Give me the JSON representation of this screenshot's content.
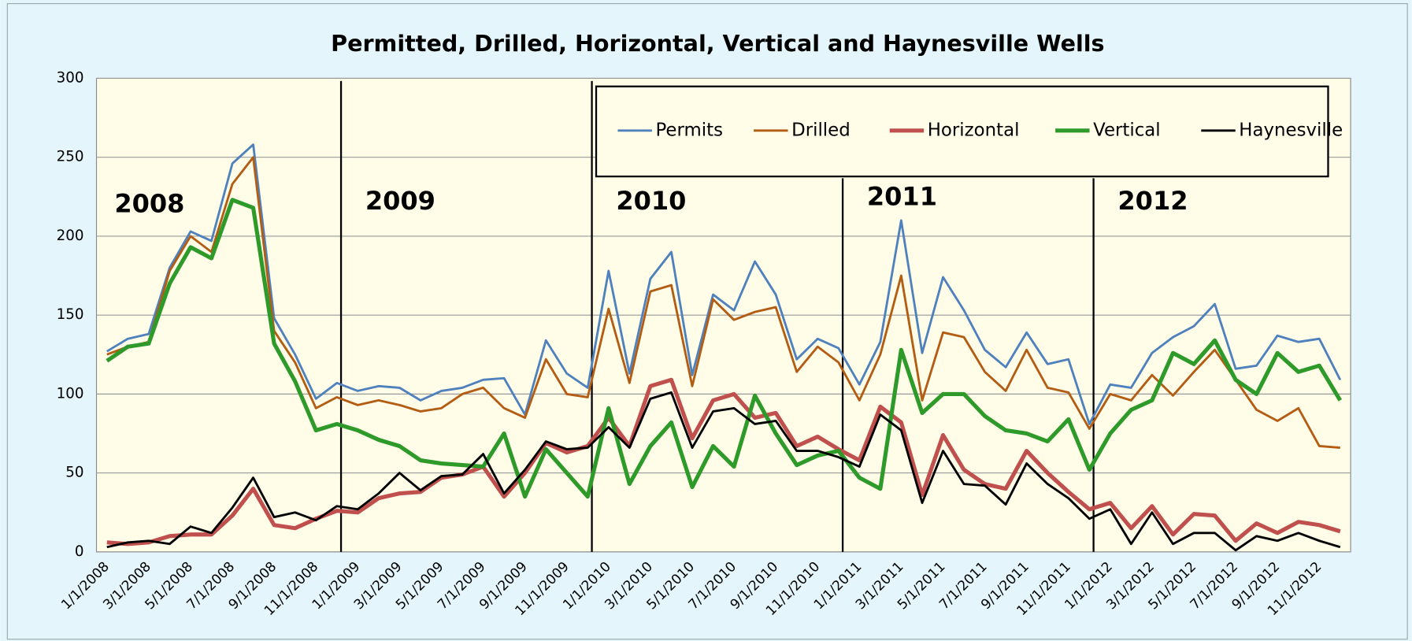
{
  "chart_data": {
    "type": "line",
    "title": "Permitted, Drilled, Horizontal, Vertical and Haynesville Wells",
    "categories": [
      "1/1/2008",
      null,
      "3/1/2008",
      null,
      "5/1/2008",
      null,
      "7/1/2008",
      null,
      "9/1/2008",
      null,
      "11/1/2008",
      null,
      "1/1/2009",
      null,
      "3/1/2009",
      null,
      "5/1/2009",
      null,
      "7/1/2009",
      null,
      "9/1/2009",
      null,
      "11/1/2009",
      null,
      "1/1/2010",
      null,
      "3/1/2010",
      null,
      "5/1/2010",
      null,
      "7/1/2010",
      null,
      "9/1/2010",
      null,
      "11/1/2010",
      null,
      "1/1/2011",
      null,
      "3/1/2011",
      null,
      "5/1/2011",
      null,
      "7/1/2011",
      null,
      "9/1/2011",
      null,
      "11/1/2011",
      null,
      "1/1/2012",
      null,
      "3/1/2012",
      null,
      "5/1/2012",
      null,
      "7/1/2012",
      null,
      "9/1/2012",
      null,
      "11/1/2012",
      null
    ],
    "series": [
      {
        "name": "Permits",
        "color": "#4f81bd",
        "width": 2.5,
        "values": [
          127,
          135,
          138,
          180,
          203,
          197,
          246,
          258,
          148,
          125,
          97,
          107,
          102,
          105,
          104,
          96,
          102,
          104,
          109,
          110,
          87,
          134,
          113,
          104,
          178,
          113,
          173,
          190,
          112,
          163,
          153,
          184,
          163,
          122,
          135,
          129,
          106,
          133,
          210,
          126,
          174,
          153,
          128,
          117,
          139,
          119,
          122,
          81,
          106,
          104,
          126,
          136,
          143,
          157,
          116,
          118,
          137,
          133,
          135,
          109
        ]
      },
      {
        "name": "Drilled",
        "color": "#b35c13",
        "width": 2.5,
        "values": [
          125,
          130,
          133,
          178,
          200,
          190,
          233,
          250,
          140,
          120,
          91,
          98,
          93,
          96,
          93,
          89,
          91,
          100,
          104,
          91,
          85,
          122,
          100,
          98,
          154,
          107,
          165,
          169,
          105,
          160,
          147,
          152,
          155,
          114,
          130,
          120,
          96,
          125,
          175,
          96,
          139,
          136,
          114,
          102,
          128,
          104,
          101,
          78,
          100,
          96,
          112,
          99,
          114,
          128,
          109,
          90,
          83,
          91,
          67,
          66
        ]
      },
      {
        "name": "Horizontal",
        "color": "#c0504d",
        "width": 4.5,
        "values": [
          6,
          5,
          6,
          10,
          11,
          11,
          23,
          40,
          17,
          15,
          21,
          26,
          25,
          34,
          37,
          38,
          47,
          49,
          54,
          35,
          50,
          69,
          63,
          67,
          85,
          67,
          105,
          109,
          72,
          96,
          100,
          85,
          88,
          67,
          73,
          65,
          58,
          92,
          82,
          36,
          74,
          52,
          43,
          40,
          64,
          50,
          38,
          27,
          31,
          15,
          29,
          11,
          24,
          23,
          7,
          18,
          12,
          19,
          17,
          13
        ]
      },
      {
        "name": "Vertical",
        "color": "#2e9a2a",
        "width": 4.5,
        "values": [
          121,
          130,
          132,
          170,
          193,
          186,
          223,
          218,
          132,
          108,
          77,
          81,
          77,
          71,
          67,
          58,
          56,
          55,
          54,
          75,
          35,
          65,
          50,
          35,
          91,
          43,
          67,
          82,
          41,
          67,
          54,
          99,
          75,
          55,
          61,
          64,
          47,
          40,
          128,
          88,
          100,
          100,
          86,
          77,
          75,
          70,
          84,
          52,
          75,
          90,
          96,
          126,
          119,
          134,
          109,
          100,
          126,
          114,
          118,
          96
        ]
      },
      {
        "name": "Haynesville",
        "color": "#000000",
        "width": 2.5,
        "values": [
          3,
          6,
          7,
          5,
          16,
          12,
          28,
          47,
          22,
          25,
          20,
          29,
          27,
          37,
          50,
          39,
          48,
          49,
          62,
          37,
          52,
          70,
          65,
          66,
          79,
          66,
          97,
          101,
          66,
          89,
          91,
          81,
          83,
          64,
          64,
          60,
          54,
          87,
          77,
          31,
          64,
          43,
          42,
          30,
          56,
          43,
          34,
          21,
          27,
          5,
          25,
          5,
          12,
          12,
          1,
          10,
          7,
          12,
          7,
          3
        ]
      }
    ],
    "annotations": [
      "2008",
      "2009",
      "2010",
      "2011",
      "2012"
    ],
    "ylim": [
      0,
      300
    ],
    "yticks": [
      0,
      50,
      100,
      150,
      200,
      250,
      300
    ],
    "grid": true,
    "legend": "top-right"
  }
}
